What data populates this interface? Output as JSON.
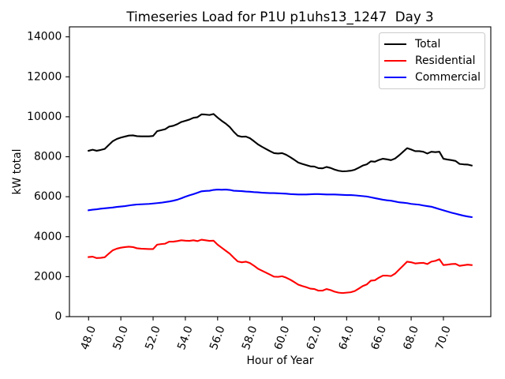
{
  "chart_data": {
    "type": "line",
    "title": "Timeseries Load for P1U p1uhs13_1247  Day 3",
    "xlabel": "Hour of Year",
    "ylabel": "kW total",
    "xlim": [
      46.8125,
      72.9375
    ],
    "ylim": [
      0,
      14500
    ],
    "grid": false,
    "legend": {
      "position": "top-right"
    },
    "x_ticks": [
      48,
      50,
      52,
      54,
      56,
      58,
      60,
      62,
      64,
      66,
      68,
      70
    ],
    "x_tick_labels": [
      "48.0",
      "50.0",
      "52.0",
      "54.0",
      "56.0",
      "58.0",
      "60.0",
      "62.0",
      "64.0",
      "66.0",
      "68.0",
      "70.0"
    ],
    "y_ticks": [
      0,
      2000,
      4000,
      6000,
      8000,
      10000,
      12000,
      14000
    ],
    "y_tick_labels": [
      "0",
      "2000",
      "4000",
      "6000",
      "8000",
      "10000",
      "12000",
      "14000"
    ],
    "x": [
      48,
      48.25,
      48.5,
      48.75,
      49,
      49.25,
      49.5,
      49.75,
      50,
      50.25,
      50.5,
      50.75,
      51,
      51.25,
      51.5,
      51.75,
      52,
      52.25,
      52.5,
      52.75,
      53,
      53.25,
      53.5,
      53.75,
      54,
      54.25,
      54.5,
      54.75,
      55,
      55.25,
      55.5,
      55.75,
      56,
      56.25,
      56.5,
      56.75,
      57,
      57.25,
      57.5,
      57.75,
      58,
      58.25,
      58.5,
      58.75,
      59,
      59.25,
      59.5,
      59.75,
      60,
      60.25,
      60.5,
      60.75,
      61,
      61.25,
      61.5,
      61.75,
      62,
      62.25,
      62.5,
      62.75,
      63,
      63.25,
      63.5,
      63.75,
      64,
      64.25,
      64.5,
      64.75,
      65,
      65.25,
      65.5,
      65.75,
      66,
      66.25,
      66.5,
      66.75,
      67,
      67.25,
      67.5,
      67.75,
      68,
      68.25,
      68.5,
      68.75,
      69,
      69.25,
      69.5,
      69.75,
      70,
      70.25,
      70.5,
      70.75,
      71,
      71.25,
      71.5,
      71.75
    ],
    "series": [
      {
        "name": "Total",
        "color": "#000000",
        "values": [
          8300,
          8350,
          8300,
          8340,
          8390,
          8590,
          8780,
          8890,
          8960,
          9010,
          9060,
          9070,
          9030,
          9020,
          9020,
          9020,
          9040,
          9280,
          9330,
          9380,
          9510,
          9550,
          9630,
          9740,
          9800,
          9860,
          9950,
          9980,
          10120,
          10110,
          10090,
          10140,
          9960,
          9800,
          9660,
          9490,
          9250,
          9050,
          9000,
          9010,
          8930,
          8780,
          8620,
          8500,
          8390,
          8280,
          8180,
          8160,
          8180,
          8100,
          7980,
          7850,
          7710,
          7640,
          7580,
          7520,
          7510,
          7430,
          7420,
          7490,
          7440,
          7360,
          7300,
          7270,
          7280,
          7300,
          7350,
          7450,
          7560,
          7620,
          7770,
          7750,
          7840,
          7900,
          7870,
          7830,
          7910,
          8070,
          8250,
          8430,
          8360,
          8280,
          8280,
          8250,
          8160,
          8250,
          8230,
          8250,
          7900,
          7860,
          7830,
          7790,
          7640,
          7620,
          7610,
          7560
        ]
      },
      {
        "name": "Residential",
        "color": "#ff0000",
        "values": [
          2980,
          3000,
          2930,
          2940,
          2970,
          3150,
          3320,
          3400,
          3450,
          3480,
          3500,
          3480,
          3420,
          3400,
          3390,
          3380,
          3380,
          3600,
          3630,
          3650,
          3750,
          3750,
          3780,
          3820,
          3800,
          3790,
          3820,
          3780,
          3850,
          3820,
          3790,
          3800,
          3600,
          3450,
          3300,
          3150,
          2950,
          2760,
          2720,
          2750,
          2680,
          2550,
          2400,
          2300,
          2200,
          2100,
          2000,
          1990,
          2020,
          1950,
          1850,
          1730,
          1600,
          1530,
          1470,
          1400,
          1380,
          1300,
          1300,
          1380,
          1330,
          1250,
          1200,
          1180,
          1200,
          1220,
          1280,
          1400,
          1530,
          1610,
          1800,
          1820,
          1950,
          2050,
          2050,
          2030,
          2150,
          2350,
          2550,
          2750,
          2720,
          2660,
          2680,
          2690,
          2630,
          2750,
          2790,
          2870,
          2580,
          2600,
          2630,
          2640,
          2540,
          2570,
          2600,
          2580
        ]
      },
      {
        "name": "Commercial",
        "color": "#0000ff",
        "values": [
          5320,
          5350,
          5370,
          5400,
          5420,
          5440,
          5460,
          5490,
          5510,
          5530,
          5560,
          5590,
          5610,
          5620,
          5630,
          5640,
          5660,
          5680,
          5700,
          5730,
          5760,
          5800,
          5850,
          5920,
          6000,
          6070,
          6130,
          6200,
          6270,
          6290,
          6300,
          6340,
          6360,
          6350,
          6360,
          6340,
          6300,
          6290,
          6280,
          6260,
          6250,
          6230,
          6220,
          6200,
          6190,
          6180,
          6180,
          6170,
          6160,
          6150,
          6130,
          6120,
          6110,
          6110,
          6110,
          6120,
          6130,
          6130,
          6120,
          6110,
          6110,
          6110,
          6100,
          6090,
          6080,
          6080,
          6070,
          6050,
          6030,
          6010,
          5970,
          5930,
          5890,
          5850,
          5820,
          5800,
          5760,
          5720,
          5700,
          5680,
          5640,
          5620,
          5600,
          5560,
          5530,
          5500,
          5440,
          5380,
          5320,
          5260,
          5200,
          5150,
          5100,
          5050,
          5010,
          4980
        ]
      }
    ]
  }
}
